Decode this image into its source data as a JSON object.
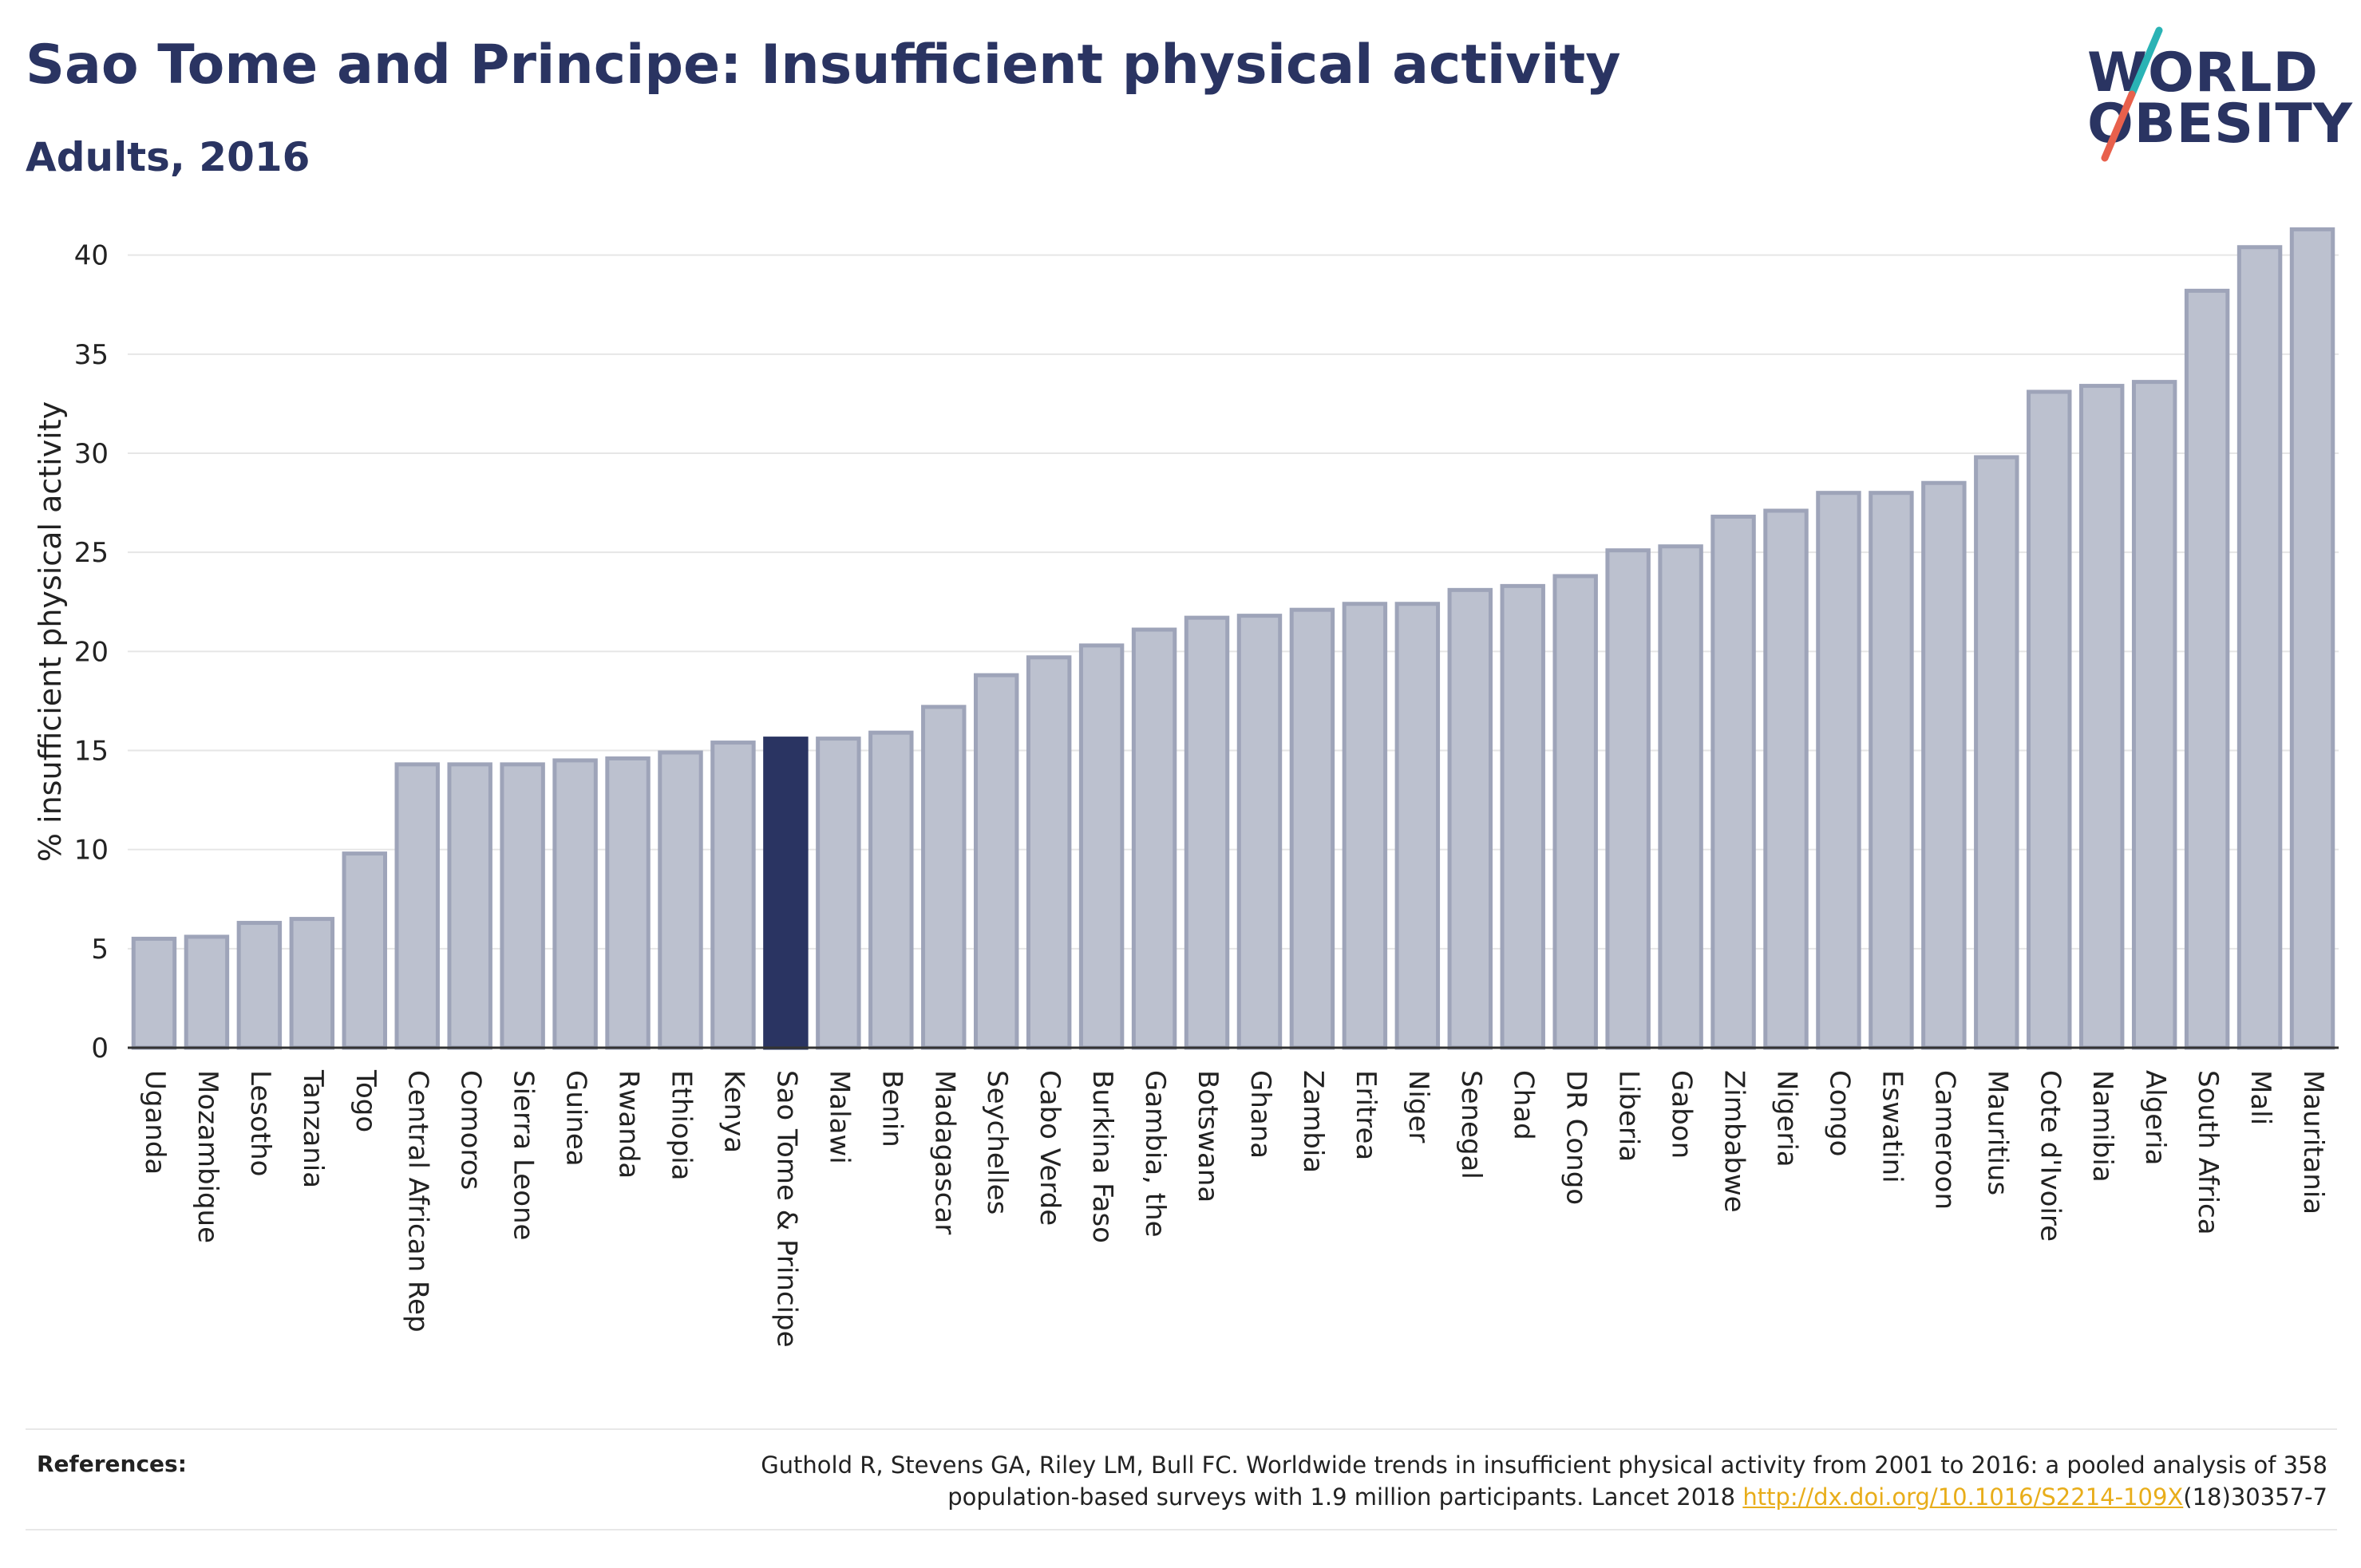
{
  "header": {
    "title": "Sao Tome and Principe: Insufficient physical activity",
    "subtitle": "Adults, 2016"
  },
  "logo": {
    "line1": "WORLD",
    "line2": "OBESITY",
    "colors": {
      "text": "#2a3462",
      "slash_top": "#2ab3b5",
      "slash_bottom": "#e8604c"
    }
  },
  "colors": {
    "bar_fill": "#bcc1cf",
    "bar_stroke": "#9ea4b9",
    "highlight_fill": "#2a3462",
    "grid": "#e6e6e6",
    "axis": "#333333"
  },
  "chart_data": {
    "type": "bar",
    "title": "Sao Tome and Principe: Insufficient physical activity",
    "subtitle": "Adults, 2016",
    "xlabel": "",
    "ylabel": "% insufficient physical activity",
    "ylim": [
      0,
      42
    ],
    "yticks": [
      0,
      5,
      10,
      15,
      20,
      25,
      30,
      35,
      40
    ],
    "grid": true,
    "highlight": "Sao Tome & Principe",
    "categories": [
      "Uganda",
      "Mozambique",
      "Lesotho",
      "Tanzania",
      "Togo",
      "Central African Rep",
      "Comoros",
      "Sierra Leone",
      "Guinea",
      "Rwanda",
      "Ethiopia",
      "Kenya",
      "Sao Tome & Principe",
      "Malawi",
      "Benin",
      "Madagascar",
      "Seychelles",
      "Cabo Verde",
      "Burkina Faso",
      "Gambia, the",
      "Botswana",
      "Ghana",
      "Zambia",
      "Eritrea",
      "Niger",
      "Senegal",
      "Chad",
      "DR Congo",
      "Liberia",
      "Gabon",
      "Zimbabwe",
      "Nigeria",
      "Congo",
      "Eswatini",
      "Cameroon",
      "Mauritius",
      "Cote d'Ivoire",
      "Namibia",
      "Algeria",
      "South Africa",
      "Mali",
      "Mauritania"
    ],
    "values": [
      5.5,
      5.6,
      6.3,
      6.5,
      9.8,
      14.3,
      14.3,
      14.3,
      14.5,
      14.6,
      14.9,
      15.4,
      15.6,
      15.6,
      15.9,
      17.2,
      18.8,
      19.7,
      20.3,
      21.1,
      21.7,
      21.8,
      22.1,
      22.4,
      22.4,
      23.1,
      23.3,
      23.8,
      25.1,
      25.3,
      26.8,
      27.1,
      28.0,
      28.0,
      28.5,
      29.8,
      33.1,
      33.4,
      33.6,
      38.2,
      40.4,
      41.3
    ]
  },
  "references": {
    "label": "References:",
    "text_line1": "Guthold R, Stevens GA, Riley LM, Bull FC. Worldwide trends in insufficient physical activity from 2001 to 2016: a pooled analysis of 358",
    "text_line2_prefix": "population-based surveys with 1.9 million participants. Lancet 2018 ",
    "link_text": "http://dx.doi.org/10.1016/S2214-109X",
    "text_line2_suffix": "(18)30357-7"
  }
}
